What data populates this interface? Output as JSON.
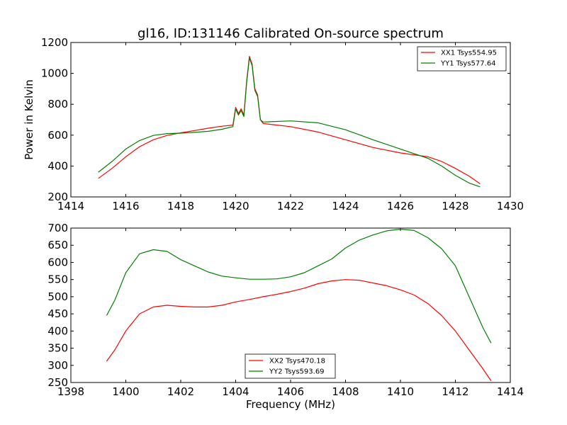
{
  "colors": {
    "xx": "#ff0000",
    "yy": "#008000",
    "axes": "#000000",
    "background": "#ffffff"
  },
  "chart_data": [
    {
      "type": "line",
      "title": "gl16, ID:131146 Calibrated On-source spectrum",
      "xlabel": "",
      "ylabel": "Power in Kelvin",
      "xlim": [
        1414,
        1430
      ],
      "ylim": [
        200,
        1200
      ],
      "xticks": [
        1414,
        1416,
        1418,
        1420,
        1422,
        1424,
        1426,
        1428,
        1430
      ],
      "yticks": [
        200,
        400,
        600,
        800,
        1000,
        1200
      ],
      "grid": false,
      "legend": "top-right",
      "series": [
        {
          "name": "XX1 Tsys554.95",
          "color": "#ff0000",
          "points": [
            [
              1415.0,
              320
            ],
            [
              1415.5,
              385
            ],
            [
              1416.0,
              460
            ],
            [
              1416.5,
              525
            ],
            [
              1417.0,
              570
            ],
            [
              1417.5,
              598
            ],
            [
              1418.0,
              615
            ],
            [
              1418.5,
              630
            ],
            [
              1419.0,
              645
            ],
            [
              1419.5,
              658
            ],
            [
              1419.9,
              665
            ],
            [
              1420.0,
              780
            ],
            [
              1420.1,
              740
            ],
            [
              1420.2,
              770
            ],
            [
              1420.3,
              730
            ],
            [
              1420.4,
              950
            ],
            [
              1420.5,
              1110
            ],
            [
              1420.6,
              1060
            ],
            [
              1420.7,
              900
            ],
            [
              1420.8,
              860
            ],
            [
              1420.9,
              700
            ],
            [
              1421.0,
              675
            ],
            [
              1422.0,
              655
            ],
            [
              1423.0,
              620
            ],
            [
              1424.0,
              570
            ],
            [
              1425.0,
              520
            ],
            [
              1426.0,
              485
            ],
            [
              1427.0,
              460
            ],
            [
              1427.5,
              430
            ],
            [
              1428.0,
              385
            ],
            [
              1428.5,
              335
            ],
            [
              1428.9,
              285
            ]
          ]
        },
        {
          "name": "YY1 Tsys577.64",
          "color": "#008000",
          "points": [
            [
              1415.0,
              360
            ],
            [
              1415.5,
              430
            ],
            [
              1416.0,
              510
            ],
            [
              1416.5,
              565
            ],
            [
              1417.0,
              598
            ],
            [
              1417.5,
              610
            ],
            [
              1418.0,
              613
            ],
            [
              1418.5,
              618
            ],
            [
              1419.0,
              625
            ],
            [
              1419.5,
              638
            ],
            [
              1419.9,
              655
            ],
            [
              1420.0,
              770
            ],
            [
              1420.1,
              730
            ],
            [
              1420.2,
              760
            ],
            [
              1420.3,
              720
            ],
            [
              1420.4,
              940
            ],
            [
              1420.5,
              1100
            ],
            [
              1420.6,
              1050
            ],
            [
              1420.7,
              890
            ],
            [
              1420.8,
              850
            ],
            [
              1420.9,
              700
            ],
            [
              1421.0,
              685
            ],
            [
              1422.0,
              692
            ],
            [
              1423.0,
              680
            ],
            [
              1424.0,
              635
            ],
            [
              1425.0,
              570
            ],
            [
              1426.0,
              510
            ],
            [
              1427.0,
              450
            ],
            [
              1427.5,
              400
            ],
            [
              1428.0,
              340
            ],
            [
              1428.5,
              290
            ],
            [
              1428.9,
              265
            ]
          ]
        }
      ]
    },
    {
      "type": "line",
      "title": "",
      "xlabel": "Frequency (MHz)",
      "ylabel": "",
      "xlim": [
        1398,
        1414
      ],
      "ylim": [
        250,
        700
      ],
      "xticks": [
        1398,
        1400,
        1402,
        1404,
        1406,
        1408,
        1410,
        1412,
        1414
      ],
      "yticks": [
        250,
        300,
        350,
        400,
        450,
        500,
        550,
        600,
        650,
        700
      ],
      "grid": false,
      "legend": "lower-center",
      "series": [
        {
          "name": "XX2 Tsys470.18",
          "color": "#ff0000",
          "points": [
            [
              1399.3,
              312
            ],
            [
              1399.6,
              345
            ],
            [
              1400.0,
              400
            ],
            [
              1400.5,
              450
            ],
            [
              1401.0,
              470
            ],
            [
              1401.5,
              475
            ],
            [
              1402.0,
              472
            ],
            [
              1402.5,
              470
            ],
            [
              1403.0,
              470
            ],
            [
              1403.5,
              475
            ],
            [
              1404.0,
              485
            ],
            [
              1404.5,
              492
            ],
            [
              1405.0,
              500
            ],
            [
              1405.5,
              507
            ],
            [
              1406.0,
              515
            ],
            [
              1406.5,
              525
            ],
            [
              1407.0,
              538
            ],
            [
              1407.5,
              546
            ],
            [
              1408.0,
              550
            ],
            [
              1408.5,
              548
            ],
            [
              1409.0,
              540
            ],
            [
              1409.5,
              532
            ],
            [
              1410.0,
              520
            ],
            [
              1410.5,
              505
            ],
            [
              1411.0,
              480
            ],
            [
              1411.5,
              445
            ],
            [
              1412.0,
              400
            ],
            [
              1412.5,
              345
            ],
            [
              1413.0,
              290
            ],
            [
              1413.3,
              255
            ]
          ]
        },
        {
          "name": "YY2 Tsys593.69",
          "color": "#008000",
          "points": [
            [
              1399.3,
              445
            ],
            [
              1399.6,
              490
            ],
            [
              1400.0,
              570
            ],
            [
              1400.5,
              625
            ],
            [
              1401.0,
              637
            ],
            [
              1401.5,
              632
            ],
            [
              1402.0,
              608
            ],
            [
              1402.5,
              590
            ],
            [
              1403.0,
              572
            ],
            [
              1403.5,
              560
            ],
            [
              1404.0,
              555
            ],
            [
              1404.5,
              551
            ],
            [
              1405.0,
              551
            ],
            [
              1405.5,
              552
            ],
            [
              1406.0,
              558
            ],
            [
              1406.5,
              570
            ],
            [
              1407.0,
              590
            ],
            [
              1407.5,
              610
            ],
            [
              1408.0,
              642
            ],
            [
              1408.5,
              665
            ],
            [
              1409.0,
              680
            ],
            [
              1409.5,
              692
            ],
            [
              1410.0,
              697
            ],
            [
              1410.5,
              693
            ],
            [
              1411.0,
              672
            ],
            [
              1411.5,
              640
            ],
            [
              1412.0,
              590
            ],
            [
              1412.5,
              500
            ],
            [
              1413.0,
              410
            ],
            [
              1413.3,
              365
            ]
          ]
        }
      ]
    }
  ]
}
